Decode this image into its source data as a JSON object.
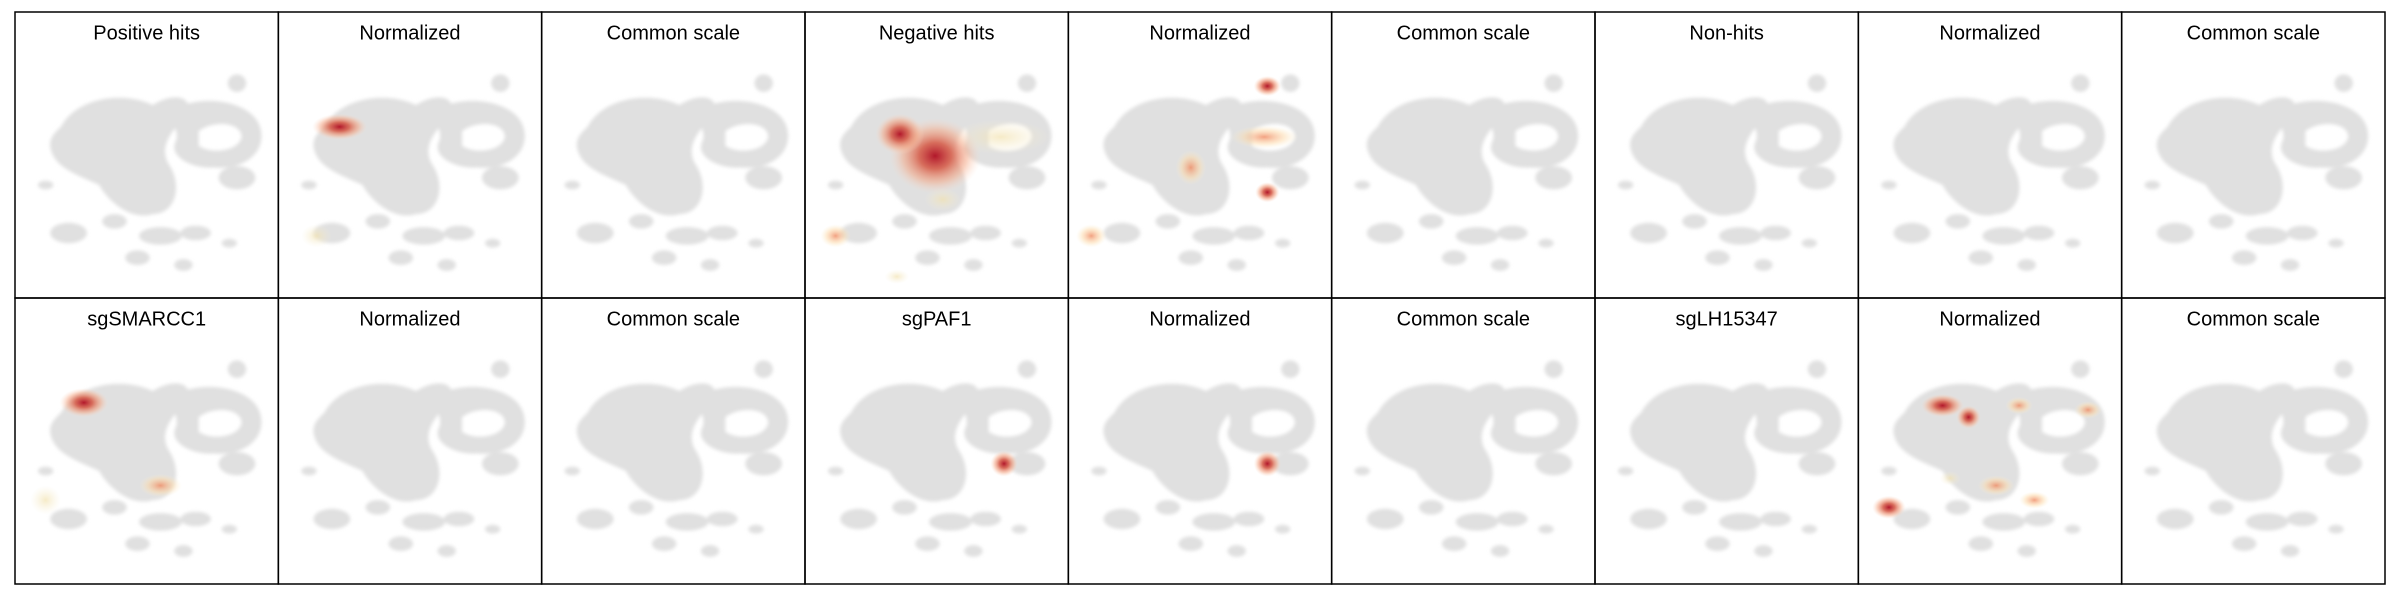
{
  "rows": [
    [
      "Positive hits",
      "Normalized",
      "Common scale",
      "Negative hits",
      "Normalized",
      "Common scale",
      "Non-hits",
      "Normalized",
      "Common scale"
    ],
    [
      "sgSMARCC1",
      "Normalized",
      "Common scale",
      "sgPAF1",
      "Normalized",
      "Common scale",
      "sgLH15347",
      "Normalized",
      "Common scale"
    ]
  ]
}
